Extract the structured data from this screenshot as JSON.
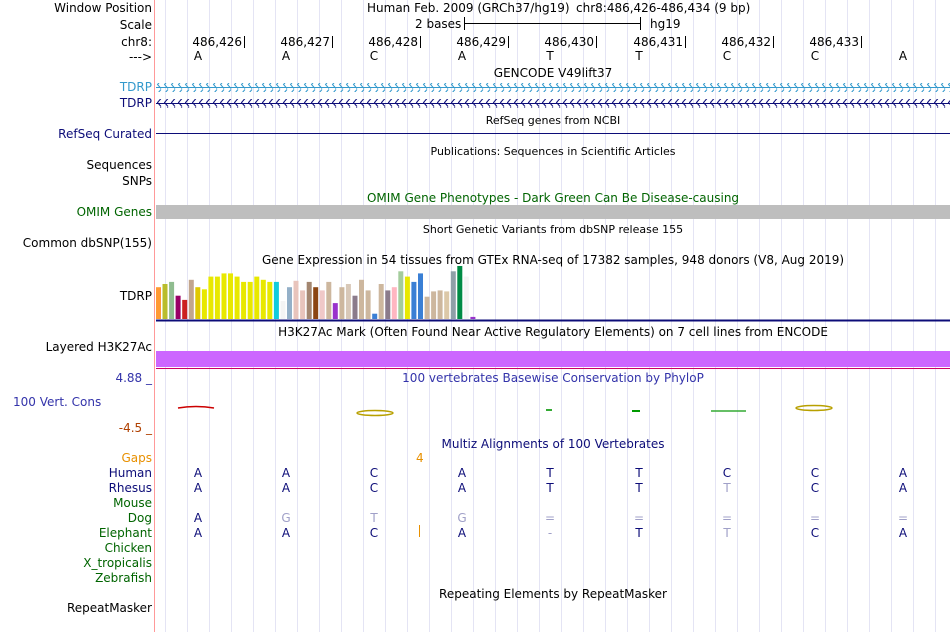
{
  "header": {
    "window_position_label": "Window Position",
    "assembly": "Human Feb. 2009 (GRCh37/hg19)",
    "position": "chr8:486,426-486,434 (9 bp)",
    "scale_label": "Scale",
    "scale_text": "2 bases",
    "scale_db": "hg19",
    "chrom_label": "chr8:",
    "strand_label": "--->"
  },
  "coords": [
    "486,426",
    "486,427",
    "486,428",
    "486,429",
    "486,430",
    "486,431",
    "486,432",
    "486,433"
  ],
  "bases": [
    "A",
    "A",
    "C",
    "A",
    "T",
    "T",
    "C",
    "C",
    "A"
  ],
  "tracks": {
    "gencode_title": "GENCODE V49lift37",
    "gene1": "TDRP",
    "gene2": "TDRP",
    "refseq_title": "RefSeq genes from NCBI",
    "refseq_label": "RefSeq Curated",
    "pubs_title": "Publications: Sequences in Scientific Articles",
    "sequences_label": "Sequences",
    "snps_label": "SNPs",
    "omim_title": "OMIM Gene Phenotypes - Dark Green Can Be Disease-causing",
    "omim_label": "OMIM Genes",
    "dbsnp_title": "Short Genetic Variants from dbSNP release 155",
    "dbsnp_label": "Common dbSNP(155)",
    "gtex_title": "Gene Expression in 54 tissues from GTEx RNA-seq of 17382 samples, 948 donors (V8, Aug 2019)",
    "gtex_label": "TDRP",
    "h3k27_title": "H3K27Ac Mark (Often Found Near Active Regulatory Elements) on 7 cell lines from ENCODE",
    "h3k27_label": "Layered H3K27Ac",
    "cons_title": "100 vertebrates Basewise Conservation by PhyloP",
    "cons_label": "100 Vert. Cons",
    "cons_max": "4.88 _",
    "cons_min": "-4.5 _",
    "multiz_title": "Multiz Alignments of 100 Vertebrates",
    "rmsk_title": "Repeating Elements by RepeatMasker",
    "rmsk_label": "RepeatMasker"
  },
  "multiz": {
    "gaps_label": "Gaps",
    "gaps_value": "4",
    "species": [
      {
        "name": "Human",
        "bases": [
          "A",
          "A",
          "C",
          "A",
          "T",
          "T",
          "C",
          "C",
          "A"
        ]
      },
      {
        "name": "Rhesus",
        "bases": [
          "A",
          "A",
          "C",
          "A",
          "T",
          "T",
          "T",
          "C",
          "A"
        ]
      },
      {
        "name": "Mouse",
        "bases": [
          "",
          "",
          "",
          "",
          "",
          "",
          "",
          "",
          ""
        ]
      },
      {
        "name": "Dog",
        "bases": [
          "A",
          "G",
          "T",
          "G",
          "=",
          "=",
          "=",
          "=",
          "="
        ]
      },
      {
        "name": "Elephant",
        "bases": [
          "A",
          "A",
          "C",
          "A",
          "-",
          "T",
          "T",
          "C",
          "A"
        ]
      },
      {
        "name": "Chicken",
        "bases": [
          "",
          "",
          "",
          "",
          "",
          "",
          "",
          "",
          ""
        ]
      },
      {
        "name": "X_tropicalis",
        "bases": [
          "",
          "",
          "",
          "",
          "",
          "",
          "",
          "",
          ""
        ]
      },
      {
        "name": "Zebrafish",
        "bases": [
          "",
          "",
          "",
          "",
          "",
          "",
          "",
          "",
          ""
        ]
      }
    ]
  },
  "gtex_chart": {
    "type": "bar",
    "values": [
      30,
      33,
      35,
      22,
      18,
      37,
      30,
      28,
      40,
      40,
      43,
      43,
      40,
      35,
      35,
      40,
      37,
      35,
      35,
      17,
      30,
      36,
      27,
      35,
      30,
      27,
      35,
      15,
      30,
      33,
      22,
      37,
      27,
      5,
      33,
      27,
      30,
      45,
      40,
      35,
      43,
      21,
      26,
      27,
      26,
      45,
      50,
      40,
      2
    ],
    "colors": [
      "#ff9933",
      "#b9bd2d",
      "#8fbc8f",
      "#990066",
      "#cc2020",
      "#c2a58d",
      "#e0c800",
      "#e8e800",
      "#e8e800",
      "#e8e800",
      "#e8e800",
      "#e8e800",
      "#e8e800",
      "#e8e800",
      "#e8e800",
      "#e8e800",
      "#e8e800",
      "#e8e800",
      "#11ccdd",
      "#f4f4f4",
      "#94b0c8",
      "#e8c4bc",
      "#e8c4bc",
      "#a38670",
      "#8b4513",
      "#f0c8c8",
      "#cdb79e",
      "#9932cc",
      "#cdb79e",
      "#d8c8b8",
      "#8b7b8b",
      "#cdb79e",
      "#cdb79e",
      "#3a7fd5",
      "#cdb79e",
      "#8b7b8b",
      "#ffb6c1",
      "#a4cc9c",
      "#e8e800",
      "#3a7fd5",
      "#3a7fd5",
      "#cdb79e",
      "#cdb79e",
      "#cdb79e",
      "#dcc8a8",
      "#8fa0a8",
      "#008b45",
      "#f4f4f4",
      "#9932cc"
    ]
  }
}
